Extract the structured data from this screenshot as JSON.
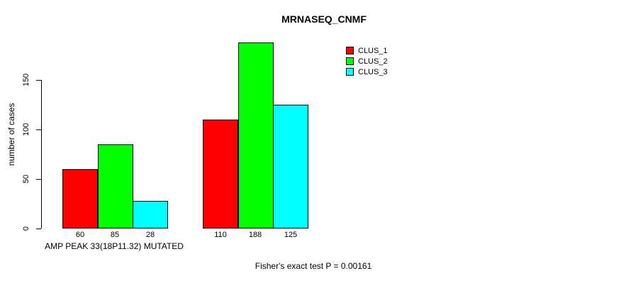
{
  "chart_data": {
    "type": "bar",
    "title": "MRNASEQ_CNMF",
    "ylabel": "number of cases",
    "xlabel": "AMP PEAK 33(18P11.32) MUTATED",
    "categories": [
      "AMP PEAK 33(18P11.32) MUTATED",
      ""
    ],
    "series": [
      {
        "name": "CLUS_1",
        "color": "#ff0000",
        "values": [
          60,
          110
        ]
      },
      {
        "name": "CLUS_2",
        "color": "#00ff00",
        "values": [
          85,
          188
        ]
      },
      {
        "name": "CLUS_3",
        "color": "#00ffff",
        "values": [
          28,
          125
        ]
      }
    ],
    "y_ticks": [
      0,
      50,
      100,
      150
    ],
    "ylim": [
      0,
      190
    ],
    "grid": false,
    "bar_borders": true,
    "bar_value_labels": [
      [
        60,
        85,
        28
      ],
      [
        110,
        188,
        125
      ]
    ],
    "legend_position": "top-right",
    "annotation": "Fisher's exact test P = 0.00161"
  }
}
